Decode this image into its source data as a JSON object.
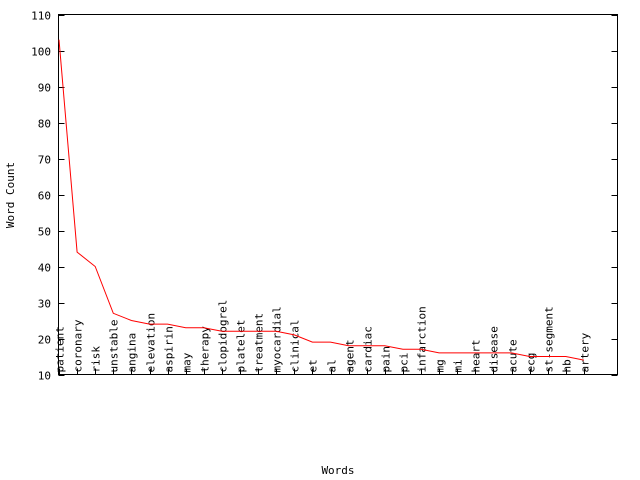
{
  "chart_data": {
    "type": "line",
    "xlabel": "Words",
    "ylabel": "Word Count",
    "ylim": [
      10,
      110
    ],
    "yticks": [
      10,
      20,
      30,
      40,
      50,
      60,
      70,
      80,
      90,
      100,
      110
    ],
    "grid": false,
    "line_color": "#ff0000",
    "categories": [
      "patient",
      "coronary",
      "risk",
      "unstable",
      "angina",
      "elevation",
      "aspirin",
      "may",
      "therapy",
      "clopidogrel",
      "platelet",
      "treatment",
      "myocardial",
      "clinical",
      "et",
      "al",
      "agent",
      "cardiac",
      "pain",
      "pci",
      "infarction",
      "mg",
      "mi",
      "heart",
      "disease",
      "acute",
      "ecg",
      "st-segment",
      "hb",
      "artery"
    ],
    "values": [
      103,
      44,
      40,
      27,
      25,
      24,
      24,
      23,
      23,
      22,
      22,
      22,
      22,
      21,
      19,
      19,
      18,
      18,
      18,
      17,
      17,
      16,
      16,
      16,
      16,
      16,
      15,
      15,
      15,
      14
    ]
  }
}
